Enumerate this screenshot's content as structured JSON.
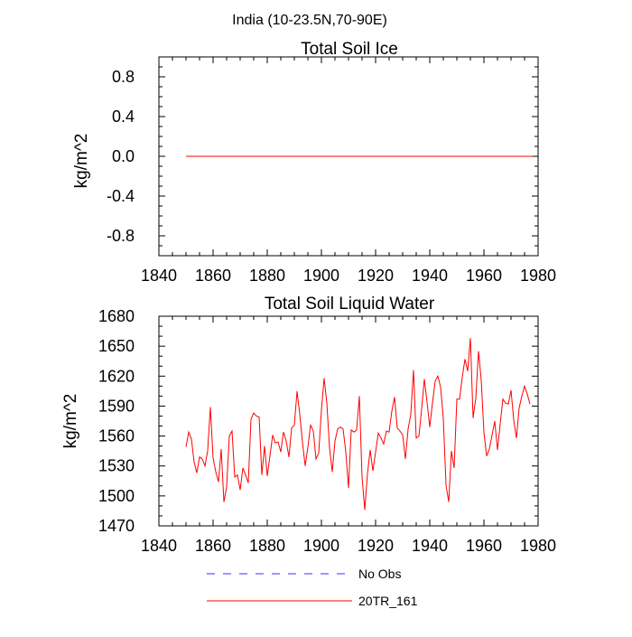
{
  "suptitle": "India (10-23.5N,70-90E)",
  "chart_data": [
    {
      "type": "line",
      "title": "Total Soil Ice",
      "xlabel": "",
      "ylabel": "kg/m^2",
      "xlim": [
        1840,
        1980
      ],
      "ylim": [
        -1.0,
        1.0
      ],
      "xticks": [
        "1840",
        "1860",
        "1880",
        "1900",
        "1920",
        "1940",
        "1960",
        "1980"
      ],
      "yticks": [
        "-0.8",
        "-0.4",
        "0.0",
        "0.4",
        "0.8"
      ],
      "series": [
        {
          "name": "20TR_161",
          "color": "#ff0000",
          "x": [
            1850,
            1978
          ],
          "values": [
            0,
            0
          ]
        }
      ]
    },
    {
      "type": "line",
      "title": "Total Soil Liquid Water",
      "xlabel": "",
      "ylabel": "kg/m^2",
      "xlim": [
        1840,
        1980
      ],
      "ylim": [
        1470,
        1680
      ],
      "xticks": [
        "1840",
        "1860",
        "1880",
        "1900",
        "1920",
        "1940",
        "1960",
        "1980"
      ],
      "yticks": [
        "1470",
        "1500",
        "1530",
        "1560",
        "1590",
        "1620",
        "1650",
        "1680"
      ],
      "series": [
        {
          "name": "20TR_161",
          "color": "#ff0000",
          "x_start": 1850,
          "values": [
            1549,
            1564,
            1557,
            1534,
            1523,
            1539,
            1537,
            1530,
            1545,
            1589,
            1538,
            1524,
            1514,
            1547,
            1494,
            1509,
            1560,
            1565,
            1519,
            1521,
            1506,
            1528,
            1521,
            1513,
            1577,
            1583,
            1580,
            1579,
            1521,
            1550,
            1520,
            1540,
            1561,
            1553,
            1554,
            1544,
            1564,
            1555,
            1539,
            1568,
            1571,
            1605,
            1582,
            1554,
            1530,
            1549,
            1571,
            1565,
            1537,
            1543,
            1586,
            1618,
            1593,
            1548,
            1524,
            1555,
            1567,
            1569,
            1567,
            1544,
            1508,
            1566,
            1564,
            1566,
            1600,
            1519,
            1486,
            1522,
            1546,
            1525,
            1544,
            1563,
            1558,
            1552,
            1565,
            1564,
            1585,
            1599,
            1568,
            1565,
            1561,
            1537,
            1567,
            1582,
            1626,
            1558,
            1560,
            1587,
            1617,
            1594,
            1569,
            1593,
            1615,
            1620,
            1609,
            1578,
            1511,
            1494,
            1545,
            1528,
            1597,
            1597,
            1619,
            1637,
            1625,
            1658,
            1578,
            1598,
            1645,
            1616,
            1564,
            1540,
            1547,
            1561,
            1575,
            1546,
            1572,
            1597,
            1593,
            1592,
            1606,
            1576,
            1558,
            1588,
            1600,
            1610,
            1602,
            1592
          ]
        }
      ]
    }
  ],
  "legend": [
    {
      "label": "No Obs",
      "color": "#3333ff",
      "dash": true
    },
    {
      "label": "20TR_161",
      "color": "#ff0000",
      "dash": false
    }
  ]
}
